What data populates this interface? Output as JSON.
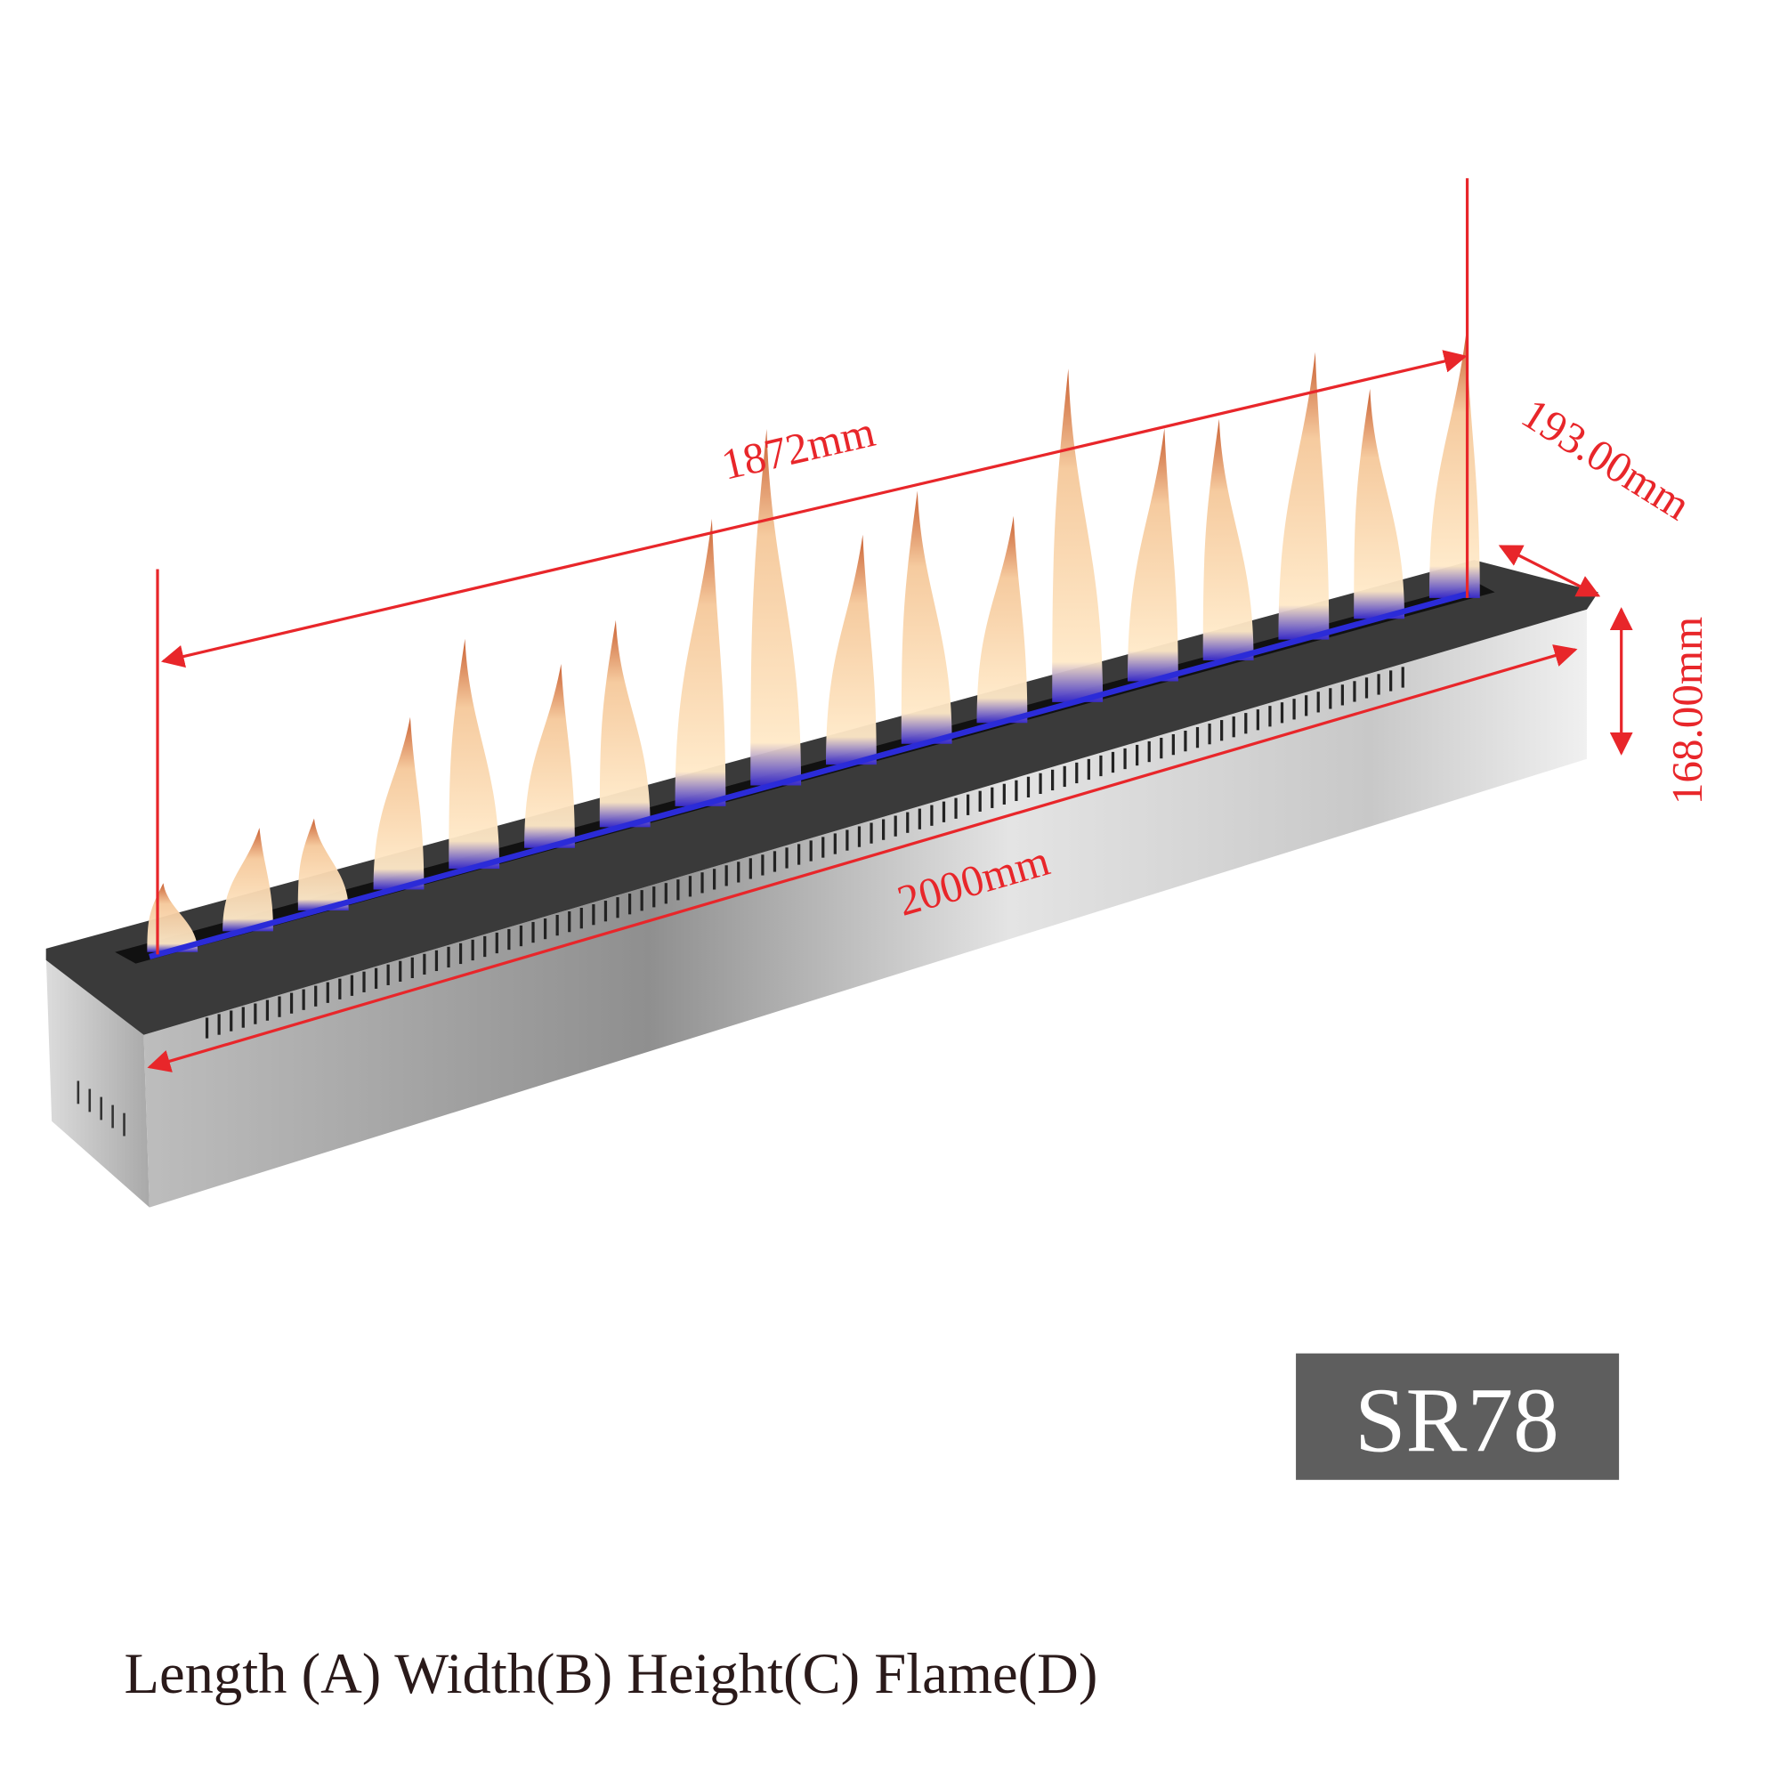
{
  "dimensions": {
    "length": "1872mm",
    "overall_length": "2000mm",
    "width": "193.00mm",
    "height": "168.00mm"
  },
  "model": "SR78",
  "caption": "Length (A) Width(B) Height(C) Flame(D)"
}
